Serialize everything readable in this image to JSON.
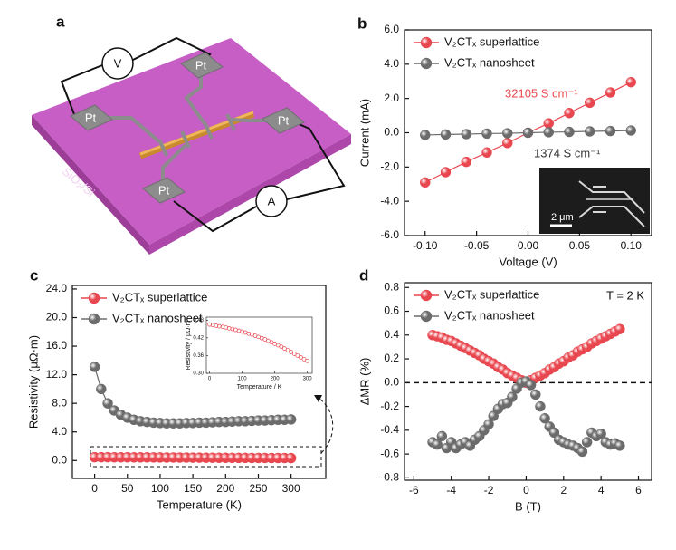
{
  "schematic": {
    "panel_label": "a",
    "voltmeter": "V",
    "ammeter": "A",
    "pads": [
      "Pt",
      "Pt",
      "Pt",
      "Pt"
    ],
    "substrate": "SiO₂/Si"
  },
  "chart_data": [
    {
      "panel_label": "b",
      "type": "line",
      "line": true,
      "xlabel": "Voltage (V)",
      "ylabel": "Current (mA)",
      "x": [
        -0.1,
        -0.08,
        -0.06,
        -0.04,
        -0.02,
        0,
        0.02,
        0.04,
        0.06,
        0.08,
        0.1
      ],
      "series": [
        {
          "name": "V₂CTₓ superlattice",
          "color": "#e8474f",
          "values": [
            -2.9,
            -2.3,
            -1.7,
            -1.15,
            -0.6,
            0,
            0.55,
            1.15,
            1.75,
            2.35,
            2.95
          ]
        },
        {
          "name": "V₂CTₓ nanosheet",
          "color": "#6b6b6b",
          "values": [
            -0.13,
            -0.1,
            -0.08,
            -0.05,
            -0.03,
            0,
            0.03,
            0.05,
            0.08,
            0.1,
            0.13
          ]
        }
      ],
      "xlim": [
        -0.12,
        0.12
      ],
      "xticks": [
        {
          "value": -0.1,
          "label": "-0.10"
        },
        -0.05,
        {
          "value": 0,
          "label": "0.00"
        },
        0.05,
        {
          "value": 0.1,
          "label": "0.10"
        }
      ],
      "ylim": [
        -6,
        6
      ],
      "yticks": [
        {
          "value": -6,
          "label": "-6.0"
        },
        {
          "value": -4,
          "label": "-4.0"
        },
        {
          "value": -2,
          "label": "-2.0"
        },
        {
          "value": 0,
          "label": "0.0"
        },
        {
          "value": 2,
          "label": "2.0"
        },
        {
          "value": 4,
          "label": "4.0"
        },
        {
          "value": 6,
          "label": "6.0"
        }
      ],
      "legend": "upper left",
      "annotations": [
        {
          "text": "32105 S cm⁻¹",
          "color": "#e8474f"
        },
        {
          "text": "1374 S cm⁻¹",
          "color": "#333333"
        }
      ],
      "inset_image": {
        "scale_bar": "2 μm"
      }
    },
    {
      "panel_label": "c",
      "type": "line",
      "line": true,
      "xlabel": "Temperature (K)",
      "ylabel": "Resistivity (μΩ·m)",
      "x": [
        0,
        10,
        20,
        30,
        40,
        50,
        60,
        70,
        80,
        90,
        100,
        110,
        120,
        130,
        140,
        150,
        160,
        170,
        180,
        190,
        200,
        210,
        220,
        230,
        240,
        250,
        260,
        270,
        280,
        290,
        300
      ],
      "series": [
        {
          "name": "V₂CTₓ superlattice",
          "color": "#e8474f",
          "values": [
            0.46,
            0.46,
            0.46,
            0.45,
            0.45,
            0.45,
            0.44,
            0.44,
            0.44,
            0.43,
            0.43,
            0.42,
            0.42,
            0.41,
            0.41,
            0.4,
            0.4,
            0.39,
            0.39,
            0.38,
            0.38,
            0.37,
            0.37,
            0.37,
            0.36,
            0.36,
            0.36,
            0.35,
            0.35,
            0.35,
            0.34
          ]
        },
        {
          "name": "V₂CTₓ nanosheet",
          "color": "#6b6b6b",
          "values": [
            13.1,
            10.0,
            8.0,
            7.0,
            6.4,
            6.0,
            5.7,
            5.5,
            5.4,
            5.3,
            5.25,
            5.2,
            5.2,
            5.2,
            5.25,
            5.25,
            5.3,
            5.3,
            5.35,
            5.4,
            5.4,
            5.45,
            5.5,
            5.5,
            5.55,
            5.6,
            5.6,
            5.65,
            5.7,
            5.7,
            5.75
          ]
        }
      ],
      "xlim": [
        -34,
        353
      ],
      "xticks": [
        0,
        50,
        100,
        150,
        200,
        250,
        300
      ],
      "ylim": [
        -2.5,
        24.5
      ],
      "yticks": [
        {
          "value": 0,
          "label": "0.0"
        },
        {
          "value": 4,
          "label": "4.0"
        },
        {
          "value": 8,
          "label": "8.0"
        },
        {
          "value": 12,
          "label": "12.0"
        },
        {
          "value": 16,
          "label": "16.0"
        },
        {
          "value": 20,
          "label": "20.0"
        },
        {
          "value": 24,
          "label": "24.0"
        }
      ],
      "legend": "upper left",
      "inset": {
        "type": "scatter",
        "line": false,
        "marker": "hollow",
        "xlabel": "Temperature / K",
        "ylabel": "Resistivity / μΩ·m",
        "x": [
          0,
          10,
          20,
          30,
          40,
          50,
          60,
          70,
          80,
          90,
          100,
          110,
          120,
          130,
          140,
          150,
          160,
          170,
          180,
          190,
          200,
          210,
          220,
          230,
          240,
          250,
          260,
          270,
          280,
          290,
          300
        ],
        "series": [
          {
            "color": "#e8474f",
            "values": [
              0.465,
              0.463,
              0.461,
              0.459,
              0.457,
              0.455,
              0.452,
              0.45,
              0.447,
              0.444,
              0.441,
              0.438,
              0.434,
              0.431,
              0.427,
              0.423,
              0.419,
              0.415,
              0.41,
              0.405,
              0.4,
              0.395,
              0.39,
              0.384,
              0.378,
              0.372,
              0.366,
              0.36,
              0.354,
              0.348,
              0.342
            ]
          }
        ],
        "xlim": [
          -10,
          315
        ],
        "xticks": [
          0,
          100,
          200,
          300
        ],
        "ylim": [
          0.3,
          0.49
        ],
        "yticks": [
          {
            "value": 0.3,
            "label": "0.30"
          },
          0.36,
          0.42,
          0.48
        ]
      }
    },
    {
      "panel_label": "d",
      "type": "scatter",
      "line": false,
      "xlabel": "B (T)",
      "ylabel": "ΔMR (%)",
      "x": [
        -5,
        -4.75,
        -4.5,
        -4.25,
        -4,
        -3.75,
        -3.5,
        -3.25,
        -3,
        -2.75,
        -2.5,
        -2.25,
        -2,
        -1.75,
        -1.5,
        -1.25,
        -1,
        -0.75,
        -0.5,
        -0.25,
        0,
        0.25,
        0.5,
        0.75,
        1,
        1.25,
        1.5,
        1.75,
        2,
        2.25,
        2.5,
        2.75,
        3,
        3.25,
        3.5,
        3.75,
        4,
        4.25,
        4.5,
        4.75,
        5
      ],
      "series": [
        {
          "name": "V₂CTₓ superlattice",
          "color": "#e8474f",
          "values": [
            0.4,
            0.39,
            0.38,
            0.36,
            0.35,
            0.33,
            0.31,
            0.29,
            0.27,
            0.25,
            0.23,
            0.2,
            0.18,
            0.16,
            0.13,
            0.11,
            0.08,
            0.06,
            0.04,
            0.02,
            0,
            0.02,
            0.04,
            0.06,
            0.08,
            0.11,
            0.13,
            0.16,
            0.18,
            0.21,
            0.23,
            0.26,
            0.28,
            0.3,
            0.33,
            0.35,
            0.37,
            0.39,
            0.41,
            0.43,
            0.45
          ]
        },
        {
          "name": "V₂CTₓ nanosheet",
          "color": "#6b6b6b",
          "values": [
            -0.5,
            -0.52,
            -0.45,
            -0.55,
            -0.5,
            -0.55,
            -0.52,
            -0.5,
            -0.53,
            -0.48,
            -0.45,
            -0.4,
            -0.35,
            -0.28,
            -0.22,
            -0.18,
            -0.17,
            -0.12,
            -0.05,
            0,
            0.01,
            -0.02,
            -0.1,
            -0.2,
            -0.3,
            -0.37,
            -0.42,
            -0.48,
            -0.5,
            -0.52,
            -0.53,
            -0.55,
            -0.58,
            -0.5,
            -0.42,
            -0.45,
            -0.43,
            -0.5,
            -0.52,
            -0.51,
            -0.53
          ]
        }
      ],
      "xlim": [
        -6.5,
        6.7
      ],
      "xticks": [
        -6,
        -4,
        -2,
        0,
        2,
        4,
        6
      ],
      "ylim": [
        -0.82,
        0.84
      ],
      "yticks": [
        -0.8,
        -0.6,
        -0.4,
        -0.2,
        {
          "value": 0,
          "label": "0.0"
        },
        0.2,
        0.4,
        0.6,
        0.8
      ],
      "hline": 0,
      "legend": "upper left",
      "annotations": [
        {
          "text": "T = 2 K"
        }
      ]
    }
  ]
}
